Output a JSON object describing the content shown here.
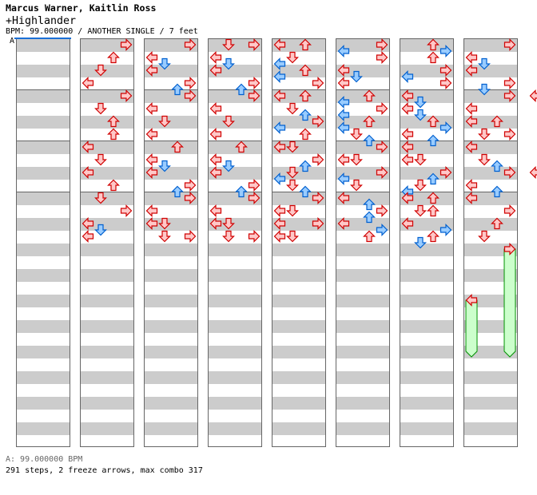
{
  "header": {
    "artist": "Marcus Warner, Kaitlin Ross",
    "title": "+Highlander",
    "info": "BPM: 99.000000 / ANOTHER SINGLE / 7 feet",
    "section_label": "A"
  },
  "footer": {
    "bpm": "A: 99.000000 BPM",
    "stats": "291 steps, 2 freeze arrows, max combo 317"
  },
  "colors": {
    "quarter_fill": "#ffc8c8",
    "quarter_stroke": "#d00000",
    "eighth_fill": "#99ccff",
    "eighth_stroke": "#0060d0",
    "freeze_fill": "#ccffcc",
    "freeze_stroke": "#009000",
    "bpm_line": "#1a6fd6"
  },
  "measures": [
    "",
    "",
    "",
    "",
    "R0 U2 D4 L6",
    "R0 D2 U4 U6",
    "L0 D2 L4 U6",
    "D0 R2 L4 D5 L6",
    "R0 L2 D3 L4 R6 U7",
    "R0 L2 D4 L6",
    "U0 L2 D3 L4 R6 U7",
    "R0 L2 D4 L4 D6 R6",
    "D0 R0 L2 D3 L4 R6 U7",
    "R0 L2 D4 L6",
    "U0 L2 D3 L4 R6 U7",
    "R0 L2 L4 D4 D6 R6",
    "L0 U0 D2 L3 U4 L5 R6",
    "L0 U0 D2 U3 R4 L5 U6",
    "L0 D0 R2 U3 D4 L5 D6 U7",
    "R0 L2 D2 L4 R4 L6 D6",
    "R0 L1 R2 L4 D5 L6",
    "U0 L1 R2 L3 U4 L5 D6 U7",
    "R0 L2 D2 R4 L5 D6",
    "L0 U1 R2 U3 L4 R5 U6",
    "U0 R1 U2 R4 L5 R6",
    "L0 D1 L2 D3 U4 R5 L6 U7",
    "L0 L2 D2 R4 U5 D6 L7",
    "L0 U0 D2 U2 L4 R5 U6 D7",
    "R0 L2 D3 L4 R6 D7",
    "R0 L2 L4 U4 D6 R6",
    "L0 D2 U3 R4 L6 U7",
    "L0 R2 U4 D6",
    "R0 U2 R4 D5 R6",
    "L0 U2 D4 R5 D6",
    "R0 L4",
    "R0 U4",
    "R0 L2 D4 L6",
    "U0 L2 R4 U6",
    "R0 D2 L4 D6",
    "D0 U2 L4 R5 L6",
    "R0 L2 D3 L4 R6 U7",
    "R0 L2 D4 L6",
    "U0 L2 D3 L4 R6 U7",
    "R0 L2 D4 L6 D6",
    "L0 U0 L2 D3 U4 R6 L7",
    "D0 L2 U3 L4 D5 U6",
    "L0 R0 L2 D3 L4 U6 L7",
    "R0 L2 D2 R4 L5 R6",
    "",
    "",
    "L0 D1 U2 R4 L5 D6",
    "L0 D1 L2 D3 L4 D5 U6",
    "R0 L1 R2 R4 U5 D6",
    "L0 R1 U2 D3 L4 R5 D6",
    "D0 R0 L2 U2 R4 U5 D6 L7",
    "L0 R0 U2 R2 D4 R5 L6 D7",
    "L0 R1 U2 R4 L5 U6",
    "L0 D1 U2 R3 L4 D5 L6 U7",
    "L0 U0 R2 L3 D4 L6 U7",
    "L0 R2 U4 D5 L6",
    "L0 R2 L3 R4 D6 U7",
    "D0 R2 D4 R4 L6 U6",
    "R0 U2 R4 D5 R6",
    "L0 D2 L4 R5 L6",
    "",
    "",
    "",
    ""
  ],
  "freezes": [
    {
      "column": 7,
      "measure": 4,
      "lane": "R",
      "start": 0,
      "end": 16
    },
    {
      "column": 7,
      "measure": 5,
      "lane": "L",
      "start": 0,
      "end": 8
    }
  ]
}
